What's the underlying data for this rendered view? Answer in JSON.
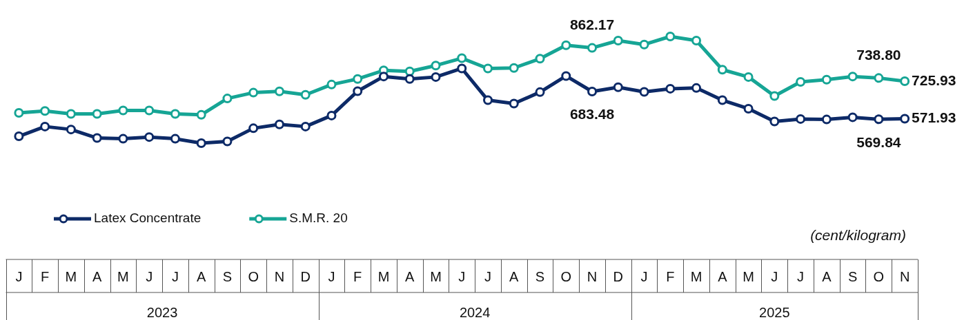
{
  "chart_data": {
    "type": "line",
    "categories": [
      "J",
      "F",
      "M",
      "A",
      "M",
      "J",
      "J",
      "A",
      "S",
      "O",
      "N",
      "D",
      "J",
      "F",
      "M",
      "A",
      "M",
      "J",
      "J",
      "A",
      "S",
      "O",
      "N",
      "D",
      "J",
      "F",
      "M",
      "A",
      "M",
      "J",
      "J",
      "A",
      "S",
      "O",
      "N"
    ],
    "series": [
      {
        "name": "Latex Concentrate",
        "color": "#0d2a67",
        "values": [
          500,
          540,
          528,
          493,
          490,
          497,
          490,
          472,
          479,
          533,
          549,
          540,
          585,
          685,
          745,
          735,
          743,
          778,
          648,
          634,
          681,
          747,
          683.48,
          701,
          682,
          695,
          698,
          648,
          613,
          561,
          571,
          569,
          578,
          569.84,
          571.93
        ],
        "value_labels": [
          null,
          null,
          null,
          null,
          null,
          null,
          null,
          null,
          null,
          null,
          null,
          null,
          null,
          null,
          null,
          null,
          null,
          null,
          null,
          null,
          null,
          null,
          "683.48",
          null,
          null,
          null,
          null,
          null,
          null,
          null,
          null,
          null,
          null,
          "569.84",
          "571.93"
        ]
      },
      {
        "name": "S.M.R. 20",
        "color": "#16a595",
        "values": [
          596,
          604,
          592,
          592,
          606,
          606,
          592,
          588,
          655,
          679,
          684,
          670,
          712,
          735,
          770,
          766,
          790,
          820,
          778,
          780,
          818,
          873,
          862.17,
          892,
          876,
          909,
          892,
          773,
          743,
          665,
          723,
          732,
          745,
          738.8,
          725.93
        ],
        "value_labels": [
          null,
          null,
          null,
          null,
          null,
          null,
          null,
          null,
          null,
          null,
          null,
          null,
          null,
          null,
          null,
          null,
          null,
          null,
          null,
          null,
          null,
          null,
          "862.17",
          null,
          null,
          null,
          null,
          null,
          null,
          null,
          null,
          null,
          null,
          "738.80",
          "725.93"
        ]
      }
    ],
    "legend": "bottom left",
    "marker": "circle",
    "line_style": "solid",
    "annotations": [
      "(cent/kilogram)",
      "2023",
      "2024",
      "2025"
    ]
  }
}
